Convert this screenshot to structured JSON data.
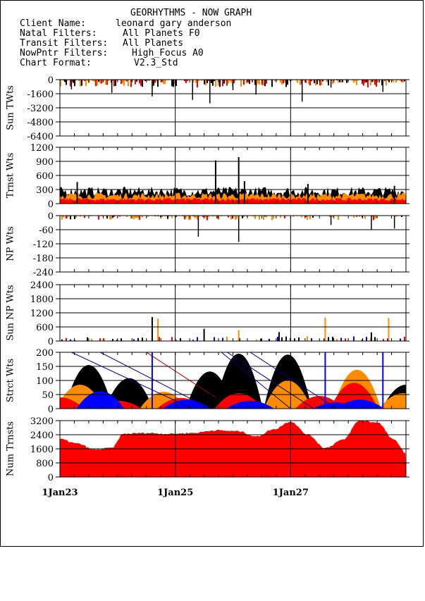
{
  "header": {
    "title": "GEORHYTHMS - NOW GRAPH",
    "rows": [
      {
        "label": "Client Name:",
        "value": "leonard gary anderson"
      },
      {
        "label": "Natal Filters:",
        "value": "All Planets F0"
      },
      {
        "label": "Transit Filters:",
        "value": "All Planets"
      },
      {
        "label": "NowPntr Filters:",
        "value": "High_Focus A0"
      },
      {
        "label": "Chart Format:",
        "value": "V2.3_Std"
      }
    ]
  },
  "colors": {
    "black": "#000000",
    "red": "#ff0000",
    "orange": "#ff8c00",
    "blue": "#0000ff",
    "navy": "#000080",
    "darkred": "#a00000"
  },
  "chart_data": {
    "type": "area",
    "x_tick_labels": [
      "1Jan23",
      "1Jan25",
      "1Jan27"
    ],
    "x_years": [
      2023,
      2025,
      2027
    ],
    "x_range": [
      2023.0,
      2029.0
    ],
    "panels": [
      {
        "id": "sun-twts",
        "ylabel": "Sun TWts",
        "ylim": [
          -6400,
          0
        ],
        "yticks": [
          "0",
          "-1600",
          "-3200",
          "-4800",
          "-6400"
        ],
        "spikes": [
          [
            2023.2,
            -1100
          ],
          [
            2023.9,
            -1500
          ],
          [
            2024.6,
            -1900
          ],
          [
            2025.3,
            -2300
          ],
          [
            2025.6,
            -2700
          ],
          [
            2026.0,
            -1200
          ],
          [
            2026.4,
            -1700
          ],
          [
            2027.2,
            -2500
          ],
          [
            2027.7,
            -900
          ],
          [
            2028.6,
            -1400
          ]
        ]
      },
      {
        "id": "trnst-wts",
        "ylabel": "Trnst Wts",
        "ylim": [
          0,
          1200
        ],
        "yticks": [
          "1200",
          "900",
          "600",
          "300",
          "0"
        ],
        "spikes": [
          [
            2025.7,
            920
          ],
          [
            2026.1,
            990
          ],
          [
            2026.2,
            480
          ],
          [
            2023.3,
            460
          ],
          [
            2027.3,
            420
          ],
          [
            2028.8,
            380
          ]
        ]
      },
      {
        "id": "np-wts",
        "ylabel": "NP Wts",
        "ylim": [
          -240,
          0
        ],
        "yticks": [
          "0",
          "-60",
          "-120",
          "-180",
          "-240"
        ],
        "spikes": [
          [
            2025.4,
            -90
          ],
          [
            2026.1,
            -112
          ],
          [
            2027.7,
            -40
          ],
          [
            2028.4,
            -60
          ],
          [
            2028.8,
            -55
          ]
        ]
      },
      {
        "id": "sun-np-wts",
        "ylabel": "Sun NP Wts",
        "ylim": [
          0,
          2400
        ],
        "yticks": [
          "2400",
          "1800",
          "1200",
          "600",
          "0"
        ],
        "spikes": [
          [
            2024.6,
            1020
          ],
          [
            2024.7,
            950
          ],
          [
            2025.5,
            520
          ],
          [
            2026.1,
            460
          ],
          [
            2026.8,
            380
          ],
          [
            2027.6,
            1000
          ],
          [
            2028.4,
            370
          ],
          [
            2028.7,
            980
          ]
        ]
      },
      {
        "id": "strct-wts",
        "ylabel": "Strct Wts",
        "ylim": [
          0,
          200
        ],
        "yticks": [
          "200",
          "150",
          "100",
          "50",
          "0"
        ],
        "humps": [
          {
            "color": "black",
            "peaks": [
              [
                2023.5,
                155
              ],
              [
                2024.2,
                108
              ],
              [
                2025.6,
                132
              ],
              [
                2026.1,
                195
              ],
              [
                2026.95,
                192
              ],
              [
                2029.0,
                85
              ]
            ]
          },
          {
            "color": "orange",
            "peaks": [
              [
                2023.35,
                85
              ],
              [
                2024.8,
                60
              ],
              [
                2026.95,
                100
              ],
              [
                2028.15,
                138
              ],
              [
                2028.95,
                55
              ]
            ]
          },
          {
            "color": "red",
            "peaks": [
              [
                2023.0,
                40
              ],
              [
                2024.0,
                28
              ],
              [
                2025.1,
                38
              ],
              [
                2026.1,
                55
              ],
              [
                2027.5,
                45
              ],
              [
                2028.1,
                92
              ]
            ]
          },
          {
            "color": "blue",
            "peaks": [
              [
                2023.7,
                62
              ],
              [
                2025.2,
                32
              ],
              [
                2026.3,
                28
              ],
              [
                2027.8,
                22
              ],
              [
                2028.2,
                32
              ]
            ]
          }
        ],
        "vlines": [
          [
            2024.6,
            200
          ],
          [
            2027.6,
            200
          ],
          [
            2028.6,
            200
          ]
        ],
        "diagonals": [
          [
            2023.2,
            200,
            2025.3,
            0
          ],
          [
            2023.7,
            200,
            2025.6,
            0
          ],
          [
            2024.5,
            200,
            2025.7,
            40
          ],
          [
            2025.8,
            200,
            2027.0,
            0
          ],
          [
            2025.9,
            200,
            2027.4,
            0
          ],
          [
            2026.3,
            200,
            2027.8,
            0
          ]
        ]
      },
      {
        "id": "num-trnsts",
        "ylabel": "Num Trnsts",
        "ylim": [
          0,
          3200
        ],
        "yticks": [
          "3200",
          "2400",
          "1600",
          "800",
          "0"
        ],
        "series": [
          [
            2023.0,
            2150
          ],
          [
            2023.3,
            1900
          ],
          [
            2023.6,
            1550
          ],
          [
            2023.9,
            1650
          ],
          [
            2024.1,
            2450
          ],
          [
            2024.5,
            2500
          ],
          [
            2024.9,
            2450
          ],
          [
            2025.3,
            2500
          ],
          [
            2025.7,
            2650
          ],
          [
            2026.1,
            2600
          ],
          [
            2026.4,
            2300
          ],
          [
            2026.7,
            2700
          ],
          [
            2027.0,
            3150
          ],
          [
            2027.3,
            2400
          ],
          [
            2027.6,
            1650
          ],
          [
            2027.9,
            2100
          ],
          [
            2028.2,
            3200
          ],
          [
            2028.5,
            3100
          ],
          [
            2028.8,
            2100
          ],
          [
            2029.0,
            1350
          ]
        ]
      }
    ]
  }
}
